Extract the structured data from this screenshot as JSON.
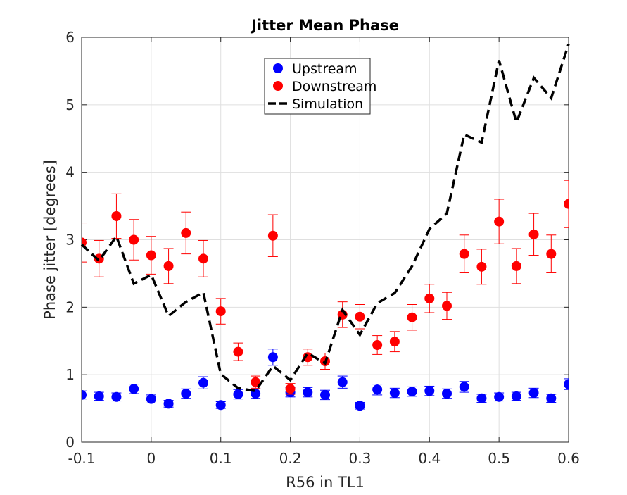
{
  "chart_data": {
    "type": "scatter",
    "title": "Jitter Mean Phase",
    "xlabel": "R56 in TL1",
    "ylabel": "Phase jitter [degrees]",
    "xlim": [
      -0.1,
      0.6
    ],
    "ylim": [
      0,
      6
    ],
    "xticks": [
      -0.1,
      0,
      0.1,
      0.2,
      0.3,
      0.4,
      0.5,
      0.6
    ],
    "xtick_labels": [
      "-0.1",
      "0",
      "0.1",
      "0.2",
      "0.3",
      "0.4",
      "0.5",
      "0.6"
    ],
    "yticks": [
      0,
      1,
      2,
      3,
      4,
      5,
      6
    ],
    "ytick_labels": [
      "0",
      "1",
      "2",
      "3",
      "4",
      "5",
      "6"
    ],
    "grid": true,
    "legend_position": "top-center",
    "series": [
      {
        "name": "Upstream",
        "kind": "points",
        "color": "#0000ff",
        "x": [
          -0.1,
          -0.075,
          -0.05,
          -0.025,
          0,
          0.025,
          0.05,
          0.075,
          0.1,
          0.125,
          0.15,
          0.175,
          0.2,
          0.225,
          0.25,
          0.275,
          0.3,
          0.325,
          0.35,
          0.375,
          0.4,
          0.425,
          0.45,
          0.475,
          0.5,
          0.525,
          0.55,
          0.575,
          0.6
        ],
        "y": [
          0.7,
          0.68,
          0.67,
          0.79,
          0.64,
          0.57,
          0.72,
          0.88,
          0.55,
          0.71,
          0.72,
          1.26,
          0.74,
          0.74,
          0.7,
          0.89,
          0.54,
          0.78,
          0.73,
          0.75,
          0.76,
          0.72,
          0.82,
          0.65,
          0.67,
          0.68,
          0.73,
          0.65,
          0.86
        ],
        "err": [
          0.06,
          0.06,
          0.06,
          0.07,
          0.06,
          0.05,
          0.07,
          0.09,
          0.05,
          0.07,
          0.07,
          0.12,
          0.07,
          0.07,
          0.07,
          0.09,
          0.05,
          0.08,
          0.07,
          0.07,
          0.07,
          0.07,
          0.08,
          0.06,
          0.06,
          0.06,
          0.07,
          0.06,
          0.08
        ]
      },
      {
        "name": "Downstream",
        "kind": "points",
        "color": "#ff0000",
        "x": [
          -0.1,
          -0.075,
          -0.05,
          -0.025,
          0,
          0.025,
          0.05,
          0.075,
          0.1,
          0.125,
          0.15,
          0.175,
          0.2,
          0.225,
          0.25,
          0.275,
          0.3,
          0.325,
          0.35,
          0.375,
          0.4,
          0.425,
          0.45,
          0.475,
          0.5,
          0.525,
          0.55,
          0.575,
          0.6
        ],
        "y": [
          2.96,
          2.72,
          3.35,
          3.0,
          2.77,
          2.61,
          3.1,
          2.72,
          1.94,
          1.34,
          0.89,
          3.06,
          0.79,
          1.26,
          1.2,
          1.89,
          1.86,
          1.44,
          1.49,
          1.85,
          2.13,
          2.02,
          2.79,
          2.6,
          3.27,
          2.61,
          3.08,
          2.79,
          3.53
        ],
        "err": [
          0.29,
          0.27,
          0.33,
          0.3,
          0.28,
          0.26,
          0.31,
          0.27,
          0.19,
          0.13,
          0.09,
          0.31,
          0.08,
          0.12,
          0.12,
          0.19,
          0.18,
          0.14,
          0.15,
          0.19,
          0.21,
          0.2,
          0.28,
          0.26,
          0.33,
          0.26,
          0.31,
          0.28,
          0.35
        ]
      },
      {
        "name": "Simulation",
        "kind": "dashed-line",
        "color": "#000000",
        "x": [
          -0.1,
          -0.075,
          -0.05,
          -0.025,
          0,
          0.025,
          0.05,
          0.075,
          0.1,
          0.125,
          0.15,
          0.175,
          0.2,
          0.225,
          0.25,
          0.275,
          0.3,
          0.325,
          0.35,
          0.375,
          0.4,
          0.425,
          0.45,
          0.475,
          0.5,
          0.525,
          0.55,
          0.575,
          0.6
        ],
        "y": [
          2.93,
          2.69,
          3.05,
          2.35,
          2.48,
          1.87,
          2.08,
          2.22,
          1.01,
          0.8,
          0.76,
          1.13,
          0.92,
          1.32,
          1.17,
          1.96,
          1.59,
          2.06,
          2.21,
          2.61,
          3.16,
          3.39,
          4.56,
          4.44,
          5.66,
          4.74,
          5.4,
          5.1,
          5.9
        ]
      }
    ]
  }
}
